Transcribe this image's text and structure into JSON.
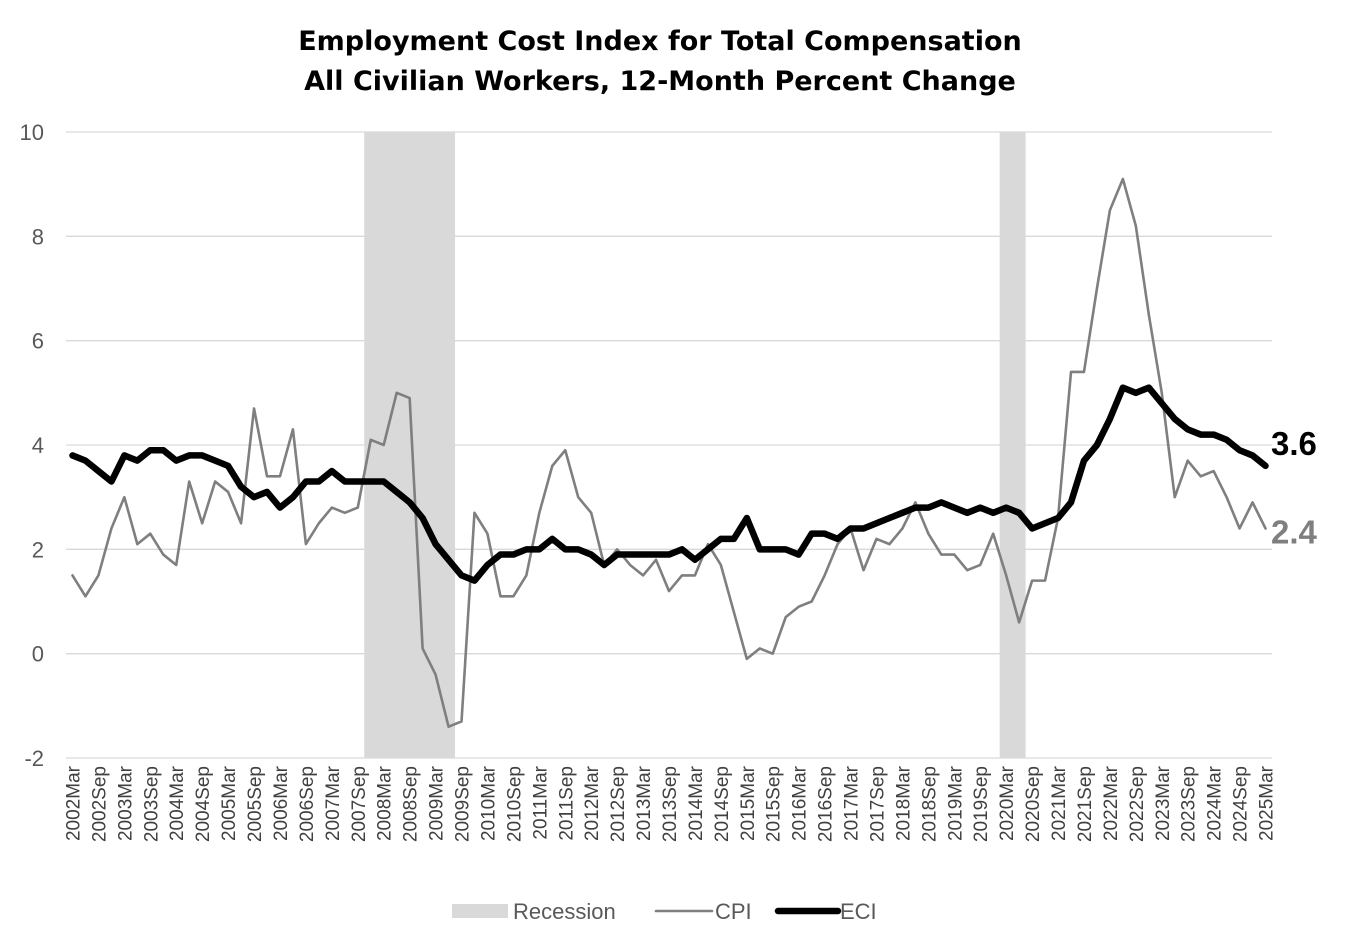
{
  "chart_data": {
    "type": "line",
    "title": "Employment Cost Index for Total Compensation",
    "subtitle": "All Civilian Workers, 12-Month Percent Change",
    "xlabel": "",
    "ylabel": "",
    "ylim": [
      -2,
      10
    ],
    "yticks": [
      -2,
      0,
      2,
      4,
      6,
      8,
      10
    ],
    "grid": "horizontal",
    "legend_position": "bottom",
    "x": [
      "2002Mar",
      "2002Jun",
      "2002Sep",
      "2002Dec",
      "2003Mar",
      "2003Jun",
      "2003Sep",
      "2003Dec",
      "2004Mar",
      "2004Jun",
      "2004Sep",
      "2004Dec",
      "2005Mar",
      "2005Jun",
      "2005Sep",
      "2005Dec",
      "2006Mar",
      "2006Jun",
      "2006Sep",
      "2006Dec",
      "2007Mar",
      "2007Jun",
      "2007Sep",
      "2007Dec",
      "2008Mar",
      "2008Jun",
      "2008Sep",
      "2008Dec",
      "2009Mar",
      "2009Jun",
      "2009Sep",
      "2009Dec",
      "2010Mar",
      "2010Jun",
      "2010Sep",
      "2010Dec",
      "2011Mar",
      "2011Jun",
      "2011Sep",
      "2011Dec",
      "2012Mar",
      "2012Jun",
      "2012Sep",
      "2012Dec",
      "2013Mar",
      "2013Jun",
      "2013Sep",
      "2013Dec",
      "2014Mar",
      "2014Jun",
      "2014Sep",
      "2014Dec",
      "2015Mar",
      "2015Jun",
      "2015Sep",
      "2015Dec",
      "2016Mar",
      "2016Jun",
      "2016Sep",
      "2016Dec",
      "2017Mar",
      "2017Jun",
      "2017Sep",
      "2017Dec",
      "2018Mar",
      "2018Jun",
      "2018Sep",
      "2018Dec",
      "2019Mar",
      "2019Jun",
      "2019Sep",
      "2019Dec",
      "2020Mar",
      "2020Jun",
      "2020Sep",
      "2020Dec",
      "2021Mar",
      "2021Jun",
      "2021Sep",
      "2021Dec",
      "2022Mar",
      "2022Jun",
      "2022Sep",
      "2022Dec",
      "2023Mar",
      "2023Jun",
      "2023Sep",
      "2023Dec",
      "2024Mar",
      "2024Jun",
      "2024Sep",
      "2024Dec",
      "2025Mar"
    ],
    "tick_labels": [
      "2002Mar",
      "2002Sep",
      "2003Mar",
      "2003Sep",
      "2004Mar",
      "2004Sep",
      "2005Mar",
      "2005Sep",
      "2006Mar",
      "2006Sep",
      "2007Mar",
      "2007Sep",
      "2008Mar",
      "2008Sep",
      "2009Mar",
      "2009Sep",
      "2010Mar",
      "2010Sep",
      "2011Mar",
      "2011Sep",
      "2012Mar",
      "2012Sep",
      "2013Mar",
      "2013Sep",
      "2014Mar",
      "2014Sep",
      "2015Mar",
      "2015Sep",
      "2016Mar",
      "2016Sep",
      "2017Mar",
      "2017Sep",
      "2018Mar",
      "2018Sep",
      "2019Mar",
      "2019Sep",
      "2020Mar",
      "2020Sep",
      "2021Mar",
      "2021Sep",
      "2022Mar",
      "2022Sep",
      "2023Mar",
      "2023Sep",
      "2024Mar",
      "2024Sep",
      "2025Mar"
    ],
    "recessions": [
      {
        "start": "2007Dec",
        "end": "2009Jun"
      },
      {
        "start": "2020Mar",
        "end": "2020Jun"
      }
    ],
    "series": [
      {
        "name": "ECI",
        "color": "#000000",
        "values": [
          3.8,
          3.7,
          3.5,
          3.3,
          3.8,
          3.7,
          3.9,
          3.9,
          3.7,
          3.8,
          3.8,
          3.7,
          3.6,
          3.2,
          3.0,
          3.1,
          2.8,
          3.0,
          3.3,
          3.3,
          3.5,
          3.3,
          3.3,
          3.3,
          3.3,
          3.1,
          2.9,
          2.6,
          2.1,
          1.8,
          1.5,
          1.4,
          1.7,
          1.9,
          1.9,
          2.0,
          2.0,
          2.2,
          2.0,
          2.0,
          1.9,
          1.7,
          1.9,
          1.9,
          1.9,
          1.9,
          1.9,
          2.0,
          1.8,
          2.0,
          2.2,
          2.2,
          2.6,
          2.0,
          2.0,
          2.0,
          1.9,
          2.3,
          2.3,
          2.2,
          2.4,
          2.4,
          2.5,
          2.6,
          2.7,
          2.8,
          2.8,
          2.9,
          2.8,
          2.7,
          2.8,
          2.7,
          2.8,
          2.7,
          2.4,
          2.5,
          2.6,
          2.9,
          3.7,
          4.0,
          4.5,
          5.1,
          5.0,
          5.1,
          4.8,
          4.5,
          4.3,
          4.2,
          4.2,
          4.1,
          3.9,
          3.8,
          3.6
        ],
        "end_label": "3.6"
      },
      {
        "name": "CPI",
        "color": "#7f7f7f",
        "values": [
          1.5,
          1.1,
          1.5,
          2.4,
          3.0,
          2.1,
          2.3,
          1.9,
          1.7,
          3.3,
          2.5,
          3.3,
          3.1,
          2.5,
          4.7,
          3.4,
          3.4,
          4.3,
          2.1,
          2.5,
          2.8,
          2.7,
          2.8,
          4.1,
          4.0,
          5.0,
          4.9,
          0.1,
          -0.4,
          -1.4,
          -1.3,
          2.7,
          2.3,
          1.1,
          1.1,
          1.5,
          2.7,
          3.6,
          3.9,
          3.0,
          2.7,
          1.7,
          2.0,
          1.7,
          1.5,
          1.8,
          1.2,
          1.5,
          1.5,
          2.1,
          1.7,
          0.8,
          -0.1,
          0.1,
          0.0,
          0.7,
          0.9,
          1.0,
          1.5,
          2.1,
          2.4,
          1.6,
          2.2,
          2.1,
          2.4,
          2.9,
          2.3,
          1.9,
          1.9,
          1.6,
          1.7,
          2.3,
          1.5,
          0.6,
          1.4,
          1.4,
          2.6,
          5.4,
          5.4,
          7.0,
          8.5,
          9.1,
          8.2,
          6.5,
          5.0,
          3.0,
          3.7,
          3.4,
          3.5,
          3.0,
          2.4,
          2.9,
          2.4
        ],
        "end_label": "2.4"
      }
    ],
    "legend": [
      {
        "label": "Recession",
        "kind": "band",
        "color": "#d9d9d9"
      },
      {
        "label": "CPI",
        "kind": "line",
        "color": "#7f7f7f"
      },
      {
        "label": "ECI",
        "kind": "line",
        "color": "#000000"
      }
    ]
  }
}
